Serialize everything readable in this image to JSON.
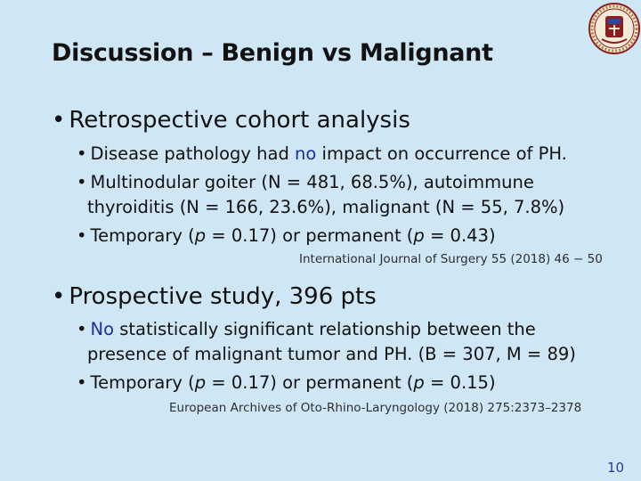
{
  "title": "Discussion – Benign vs Malignant",
  "section1": {
    "heading": "Retrospective cohort analysis",
    "items": [
      {
        "before": "Disease pathology had ",
        "highlight": "no",
        "after": " impact on occurrence of PH."
      },
      {
        "line1": "Multinodular goiter (N = 481, 68.5%), autoimmune",
        "line2": "thyroiditis (N = 166, 23.6%), malignant (N = 55, 7.8%)"
      },
      {
        "t1": "Temporary (",
        "p": "p",
        "t2": " = 0.17) or permanent (",
        "t3": " = 0.43)"
      }
    ],
    "reference": "International Journal of Surgery 55 (2018) 46 − 50"
  },
  "section2": {
    "heading": "Prospective study, 396 pts",
    "items": [
      {
        "highlight": "No",
        "line1": " statistically significant relationship between the",
        "line2": "presence of malignant tumor and PH. (B = 307, M = 89)"
      },
      {
        "t1": "Temporary (",
        "p": "p",
        "t2": " = 0.17) or permanent (",
        "t3": " = 0.15)"
      }
    ],
    "reference": "European Archives of Oto-Rhino-Laryngology (2018) 275:2373–2378"
  },
  "bullet": "•",
  "page_number": "10",
  "colors": {
    "background": "#cfe6f5",
    "highlight": "#1f2d9c",
    "logo": "#8b1e1e"
  },
  "logo_icon": "university-seal-icon"
}
